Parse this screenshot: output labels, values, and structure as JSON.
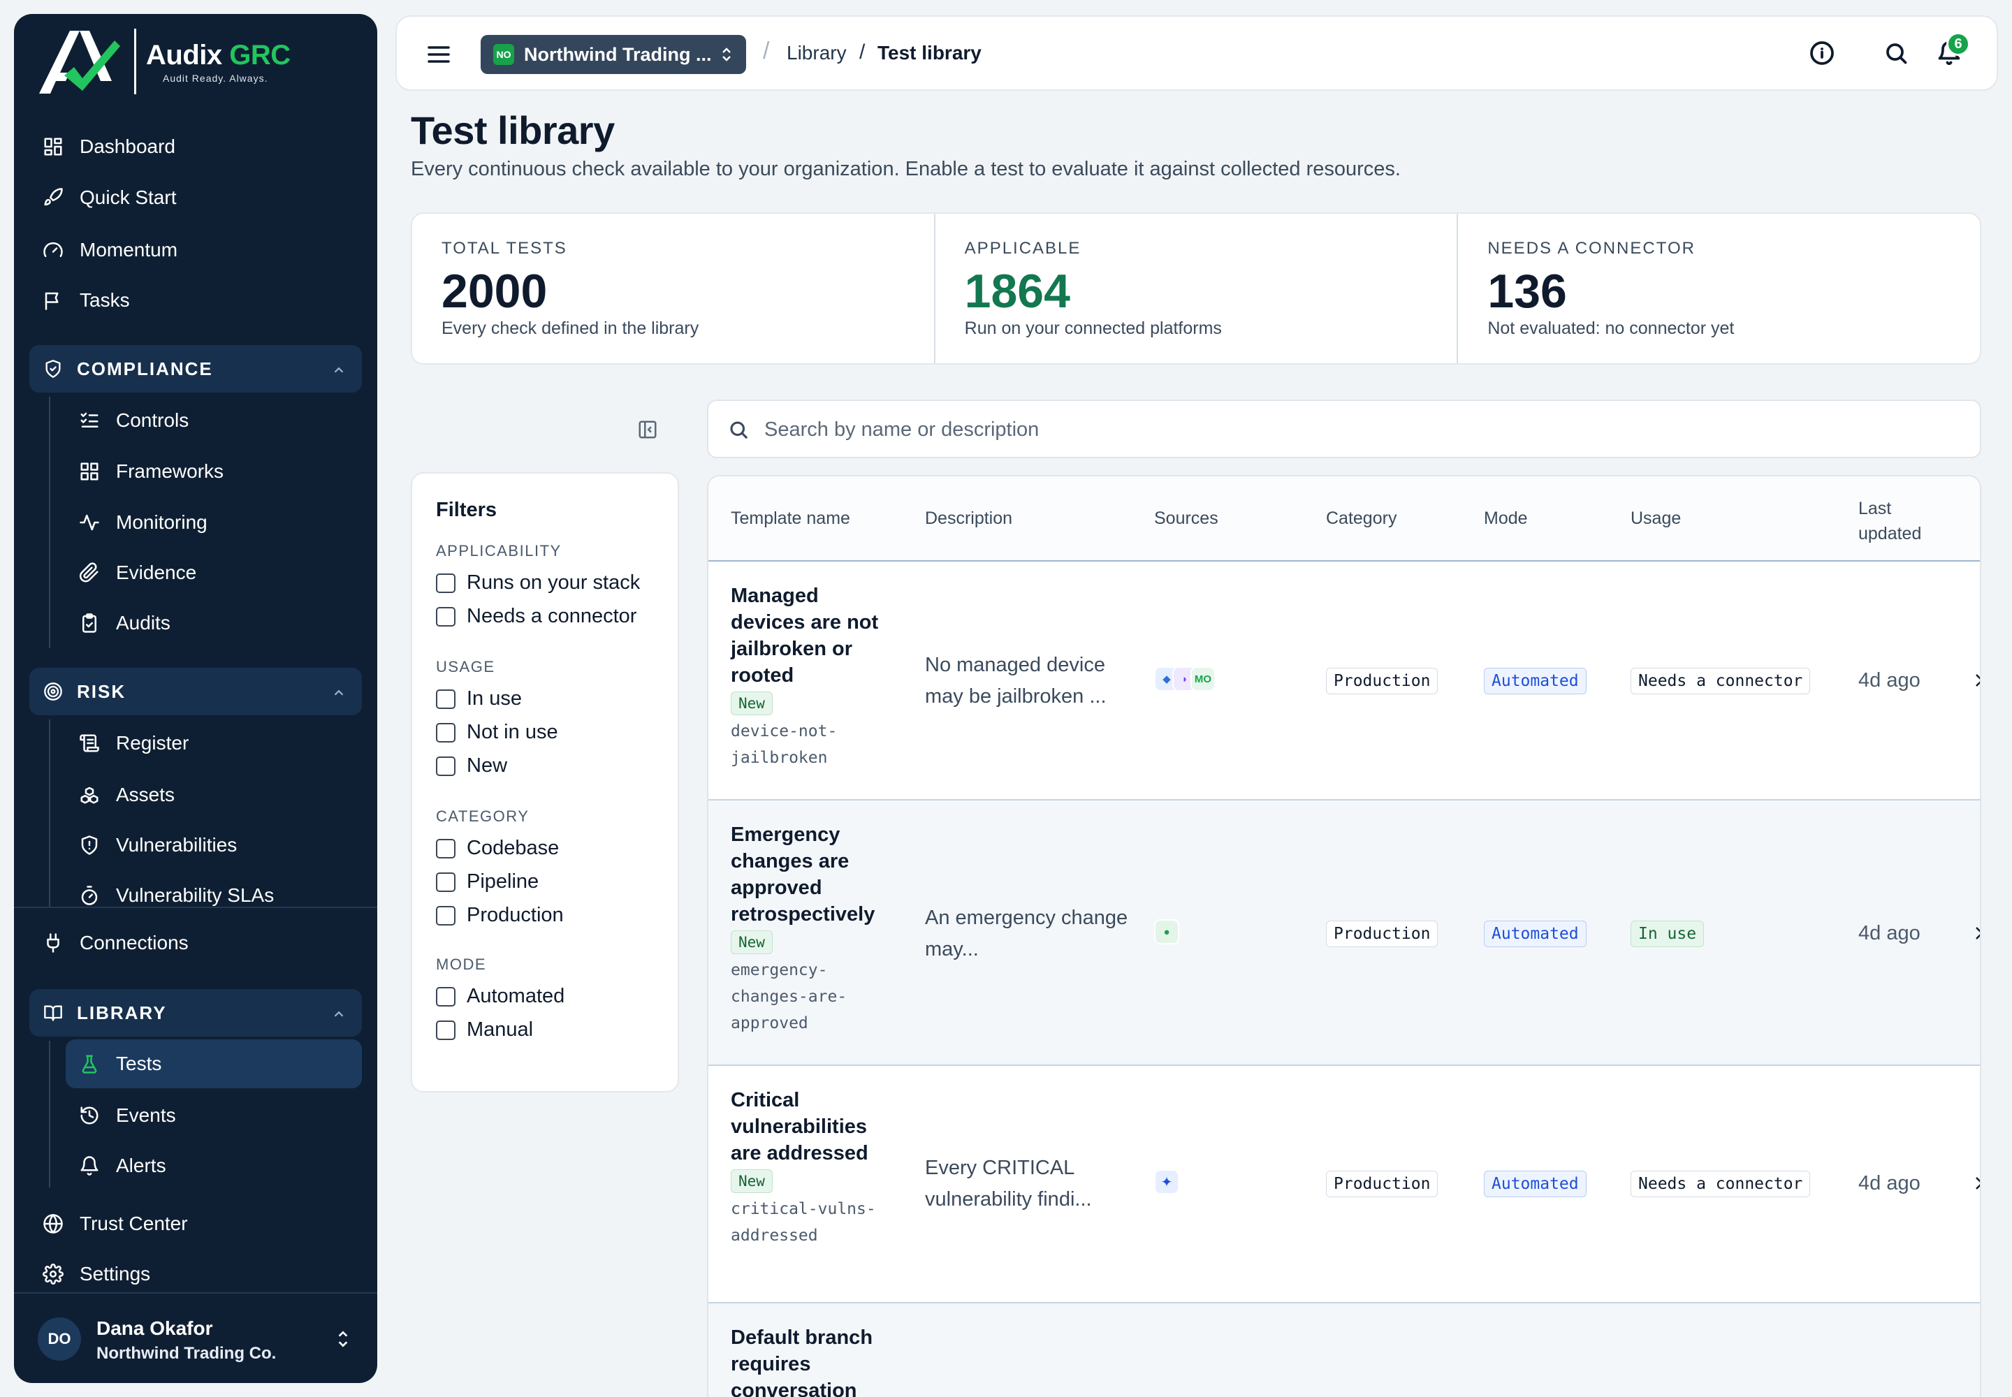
{
  "brand": {
    "name_main": "Audix",
    "name_accent": "GRC",
    "tagline": "Audit Ready. Always."
  },
  "sidebar": {
    "top_items": [
      {
        "label": "Dashboard",
        "icon": "grid-icon"
      },
      {
        "label": "Quick Start",
        "icon": "rocket-icon"
      },
      {
        "label": "Momentum",
        "icon": "gauge-icon"
      },
      {
        "label": "Tasks",
        "icon": "flag-icon"
      }
    ],
    "compliance": {
      "title": "COMPLIANCE",
      "items": [
        {
          "label": "Controls",
          "icon": "checklist-icon"
        },
        {
          "label": "Frameworks",
          "icon": "grid-icon"
        },
        {
          "label": "Monitoring",
          "icon": "pulse-icon"
        },
        {
          "label": "Evidence",
          "icon": "paperclip-icon"
        },
        {
          "label": "Audits",
          "icon": "clipboard-icon"
        }
      ]
    },
    "risk": {
      "title": "RISK",
      "items": [
        {
          "label": "Register",
          "icon": "scroll-icon"
        },
        {
          "label": "Assets",
          "icon": "boxes-icon"
        },
        {
          "label": "Vulnerabilities",
          "icon": "shield-alert-icon"
        },
        {
          "label": "Vulnerability SLAs",
          "icon": "timer-icon"
        }
      ]
    },
    "connections": {
      "label": "Connections",
      "icon": "plug-icon"
    },
    "library": {
      "title": "LIBRARY",
      "items": [
        {
          "label": "Tests",
          "icon": "flask-icon",
          "active": true
        },
        {
          "label": "Events",
          "icon": "history-icon"
        },
        {
          "label": "Alerts",
          "icon": "bell-icon"
        }
      ]
    },
    "bottom_items": [
      {
        "label": "Trust Center",
        "icon": "globe-icon"
      },
      {
        "label": "Settings",
        "icon": "gear-icon"
      }
    ],
    "user": {
      "initials": "DO",
      "name": "Dana Okafor",
      "org": "Northwind Trading Co."
    }
  },
  "topbar": {
    "org_badge": "NO",
    "org_name": "Northwind Trading ...",
    "breadcrumb_sep": "/",
    "breadcrumb": [
      "Library",
      "Test library"
    ],
    "notification_count": "6"
  },
  "page": {
    "title": "Test library",
    "subtitle": "Every continuous check available to your organization. Enable a test to evaluate it against collected resources."
  },
  "stats": [
    {
      "label": "TOTAL TESTS",
      "value": "2000",
      "desc": "Every check defined in the library"
    },
    {
      "label": "APPLICABLE",
      "value": "1864",
      "desc": "Run on your connected platforms"
    },
    {
      "label": "NEEDS A CONNECTOR",
      "value": "136",
      "desc": "Not evaluated: no connector yet"
    }
  ],
  "filters": {
    "title": "Filters",
    "groups": [
      {
        "name": "APPLICABILITY",
        "options": [
          "Runs on your stack",
          "Needs a connector"
        ]
      },
      {
        "name": "USAGE",
        "options": [
          "In use",
          "Not in use",
          "New"
        ]
      },
      {
        "name": "CATEGORY",
        "options": [
          "Codebase",
          "Pipeline",
          "Production"
        ]
      },
      {
        "name": "MODE",
        "options": [
          "Automated",
          "Manual"
        ]
      }
    ]
  },
  "search": {
    "placeholder": "Search by name or description",
    "value": ""
  },
  "table": {
    "columns": [
      "Template name",
      "Description",
      "Sources",
      "Category",
      "Mode",
      "Usage",
      "Last updated"
    ],
    "rows": [
      {
        "name": "Managed devices are not jailbroken or rooted",
        "badge": "New",
        "slug": "device-not-jailbroken",
        "description": "No managed device may be jailbroken ...",
        "sources": [
          {
            "label": "",
            "color": "#2f6fd6",
            "bg": "#e6efff"
          },
          {
            "label": "",
            "color": "#7c3aed",
            "bg": "#efe9ff"
          },
          {
            "label": "MO",
            "color": "#16a34a",
            "bg": "#e7f6ec"
          }
        ],
        "category": "Production",
        "mode": "Automated",
        "usage": "Needs a connector",
        "updated": "4d ago"
      },
      {
        "name": "Emergency changes are approved retrospectively",
        "badge": "New",
        "slug": "emergency-changes-are-approved",
        "description": "An emergency change may...",
        "sources": [
          {
            "label": "",
            "color": "#16a34a",
            "bg": "#e3f5e8"
          }
        ],
        "category": "Production",
        "mode": "Automated",
        "usage": "In use",
        "updated": "4d ago"
      },
      {
        "name": "Critical vulnerabilities are addressed",
        "badge": "New",
        "slug": "critical-vulns-addressed",
        "description": "Every CRITICAL vulnerability findi...",
        "sources": [
          {
            "label": "✦",
            "color": "#1d4ed8",
            "bg": "#e6eeff"
          }
        ],
        "category": "Production",
        "mode": "Automated",
        "usage": "Needs a connector",
        "updated": "4d ago"
      },
      {
        "name": "Default branch requires conversation",
        "badge": "",
        "slug": "",
        "description": "",
        "sources": [],
        "category": "",
        "mode": "",
        "usage": "",
        "updated": ""
      }
    ]
  }
}
